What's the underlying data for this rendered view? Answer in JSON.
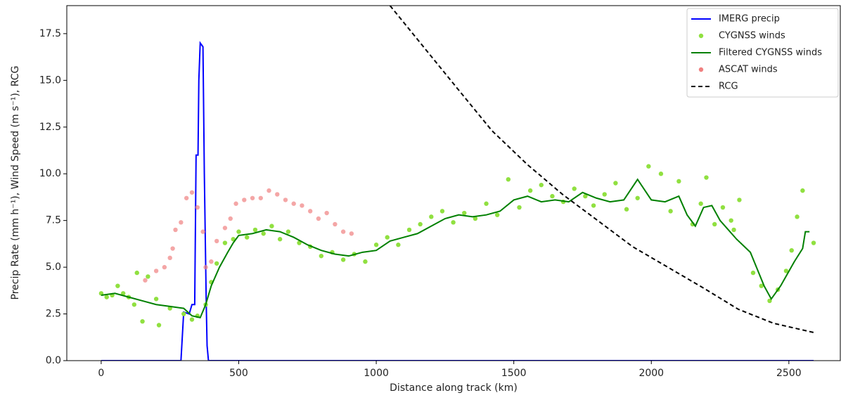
{
  "chart_data": {
    "type": "line",
    "xlabel": "Distance along track (km)",
    "ylabel": "Precip Rate (mm h⁻¹), Wind Speed (m s⁻¹), RCG",
    "xlim": [
      -125,
      2687
    ],
    "ylim": [
      0,
      19
    ],
    "xticks": [
      0,
      500,
      1000,
      1500,
      2000,
      2500
    ],
    "yticks": [
      {
        "value": 0,
        "label": "0.0"
      },
      {
        "value": 2.5,
        "label": "2.5"
      },
      {
        "value": 5,
        "label": "5.0"
      },
      {
        "value": 7.5,
        "label": "7.5"
      },
      {
        "value": 10,
        "label": "10.0"
      },
      {
        "value": 12.5,
        "label": "12.5"
      },
      {
        "value": 15,
        "label": "15.0"
      },
      {
        "value": 17.5,
        "label": "17.5"
      }
    ],
    "legend": "upper right",
    "series": [
      {
        "name": "IMERG precip",
        "kind": "line",
        "color": "#0000ff",
        "x": [
          0,
          290,
          300,
          320,
          330,
          340,
          345,
          352,
          355,
          360,
          370,
          375,
          382,
          385,
          390,
          2590
        ],
        "values": [
          0,
          0,
          2.6,
          2.5,
          3.0,
          3.0,
          11,
          11,
          15,
          17,
          16.8,
          10,
          3,
          0.8,
          0,
          0
        ]
      },
      {
        "name": "CYGNSS winds",
        "kind": "scatter",
        "color": "#90e040",
        "x": [
          0,
          20,
          40,
          60,
          80,
          100,
          120,
          130,
          150,
          170,
          200,
          210,
          250,
          300,
          330,
          350,
          380,
          400,
          420,
          450,
          480,
          500,
          530,
          560,
          590,
          620,
          650,
          680,
          720,
          760,
          800,
          840,
          880,
          920,
          960,
          1000,
          1040,
          1080,
          1120,
          1160,
          1200,
          1240,
          1280,
          1320,
          1360,
          1400,
          1440,
          1480,
          1520,
          1560,
          1600,
          1640,
          1680,
          1720,
          1760,
          1790,
          1830,
          1870,
          1910,
          1950,
          1990,
          2035,
          2070,
          2100,
          2150,
          2180,
          2200,
          2230,
          2260,
          2290,
          2300,
          2320,
          2370,
          2400,
          2430,
          2460,
          2490,
          2510,
          2530,
          2550,
          2590
        ],
        "values": [
          3.6,
          3.4,
          3.5,
          4.0,
          3.6,
          3.4,
          3.0,
          4.7,
          2.1,
          4.5,
          3.3,
          1.9,
          2.8,
          2.5,
          2.2,
          2.4,
          3.0,
          4.2,
          5.2,
          6.3,
          6.5,
          6.9,
          6.6,
          7.0,
          6.8,
          7.2,
          6.5,
          6.9,
          6.3,
          6.1,
          5.6,
          5.8,
          5.4,
          5.7,
          5.3,
          6.2,
          6.6,
          6.2,
          7.0,
          7.3,
          7.7,
          8.0,
          7.4,
          7.9,
          7.6,
          8.4,
          7.8,
          9.7,
          8.2,
          9.1,
          9.4,
          8.8,
          8.5,
          9.2,
          8.8,
          8.3,
          8.9,
          9.5,
          8.1,
          8.7,
          10.4,
          10.0,
          8.0,
          9.6,
          7.3,
          8.4,
          9.8,
          7.3,
          8.2,
          7.5,
          7.0,
          8.6,
          4.7,
          4.0,
          3.2,
          3.8,
          4.8,
          5.9,
          7.7,
          9.1,
          6.3
        ]
      },
      {
        "name": "Filtered CYGNSS winds",
        "kind": "line",
        "color": "#008000",
        "x": [
          0,
          50,
          100,
          150,
          200,
          250,
          300,
          330,
          360,
          380,
          400,
          430,
          460,
          480,
          500,
          550,
          600,
          650,
          700,
          750,
          800,
          850,
          900,
          950,
          1000,
          1050,
          1100,
          1150,
          1200,
          1250,
          1300,
          1350,
          1400,
          1450,
          1500,
          1550,
          1600,
          1650,
          1700,
          1750,
          1800,
          1850,
          1900,
          1950,
          2000,
          2050,
          2100,
          2130,
          2160,
          2190,
          2220,
          2250,
          2280,
          2310,
          2360,
          2410,
          2436,
          2470,
          2520,
          2550,
          2560,
          2575
        ],
        "values": [
          3.5,
          3.6,
          3.4,
          3.2,
          3.0,
          2.9,
          2.8,
          2.4,
          2.3,
          3.0,
          4.0,
          5.0,
          5.8,
          6.3,
          6.7,
          6.8,
          7.0,
          6.9,
          6.6,
          6.2,
          5.9,
          5.7,
          5.6,
          5.8,
          5.9,
          6.4,
          6.6,
          6.8,
          7.2,
          7.6,
          7.8,
          7.7,
          7.8,
          8.0,
          8.6,
          8.8,
          8.5,
          8.6,
          8.5,
          9.0,
          8.7,
          8.5,
          8.6,
          9.7,
          8.6,
          8.5,
          8.8,
          7.8,
          7.2,
          8.2,
          8.3,
          7.5,
          7.0,
          6.5,
          5.8,
          4.0,
          3.3,
          4.0,
          5.3,
          6.0,
          6.9,
          6.9
        ]
      },
      {
        "name": "ASCAT winds",
        "kind": "scatter",
        "color": "#f08080",
        "x": [
          160,
          200,
          230,
          250,
          260,
          270,
          290,
          310,
          330,
          350,
          370,
          380,
          400,
          420,
          450,
          470,
          490,
          520,
          550,
          580,
          610,
          640,
          670,
          700,
          730,
          760,
          790,
          820,
          850,
          880,
          910
        ],
        "values": [
          4.3,
          4.8,
          5.0,
          5.5,
          6.0,
          7.0,
          7.4,
          8.7,
          9.0,
          8.2,
          6.9,
          5.0,
          5.3,
          6.4,
          7.1,
          7.6,
          8.4,
          8.6,
          8.7,
          8.7,
          9.1,
          8.9,
          8.6,
          8.4,
          8.3,
          8.0,
          7.6,
          7.9,
          7.3,
          6.9,
          6.8
        ]
      },
      {
        "name": "RCG",
        "kind": "dashed",
        "color": "#000000",
        "x": [
          1050,
          1166,
          1293,
          1421,
          1549,
          1677,
          1805,
          1932,
          2060,
          2188,
          2316,
          2444,
          2592
        ],
        "values": [
          19.0,
          16.9,
          14.6,
          12.3,
          10.5,
          8.9,
          7.5,
          6.1,
          5.0,
          3.9,
          2.75,
          2.0,
          1.5
        ]
      }
    ]
  }
}
